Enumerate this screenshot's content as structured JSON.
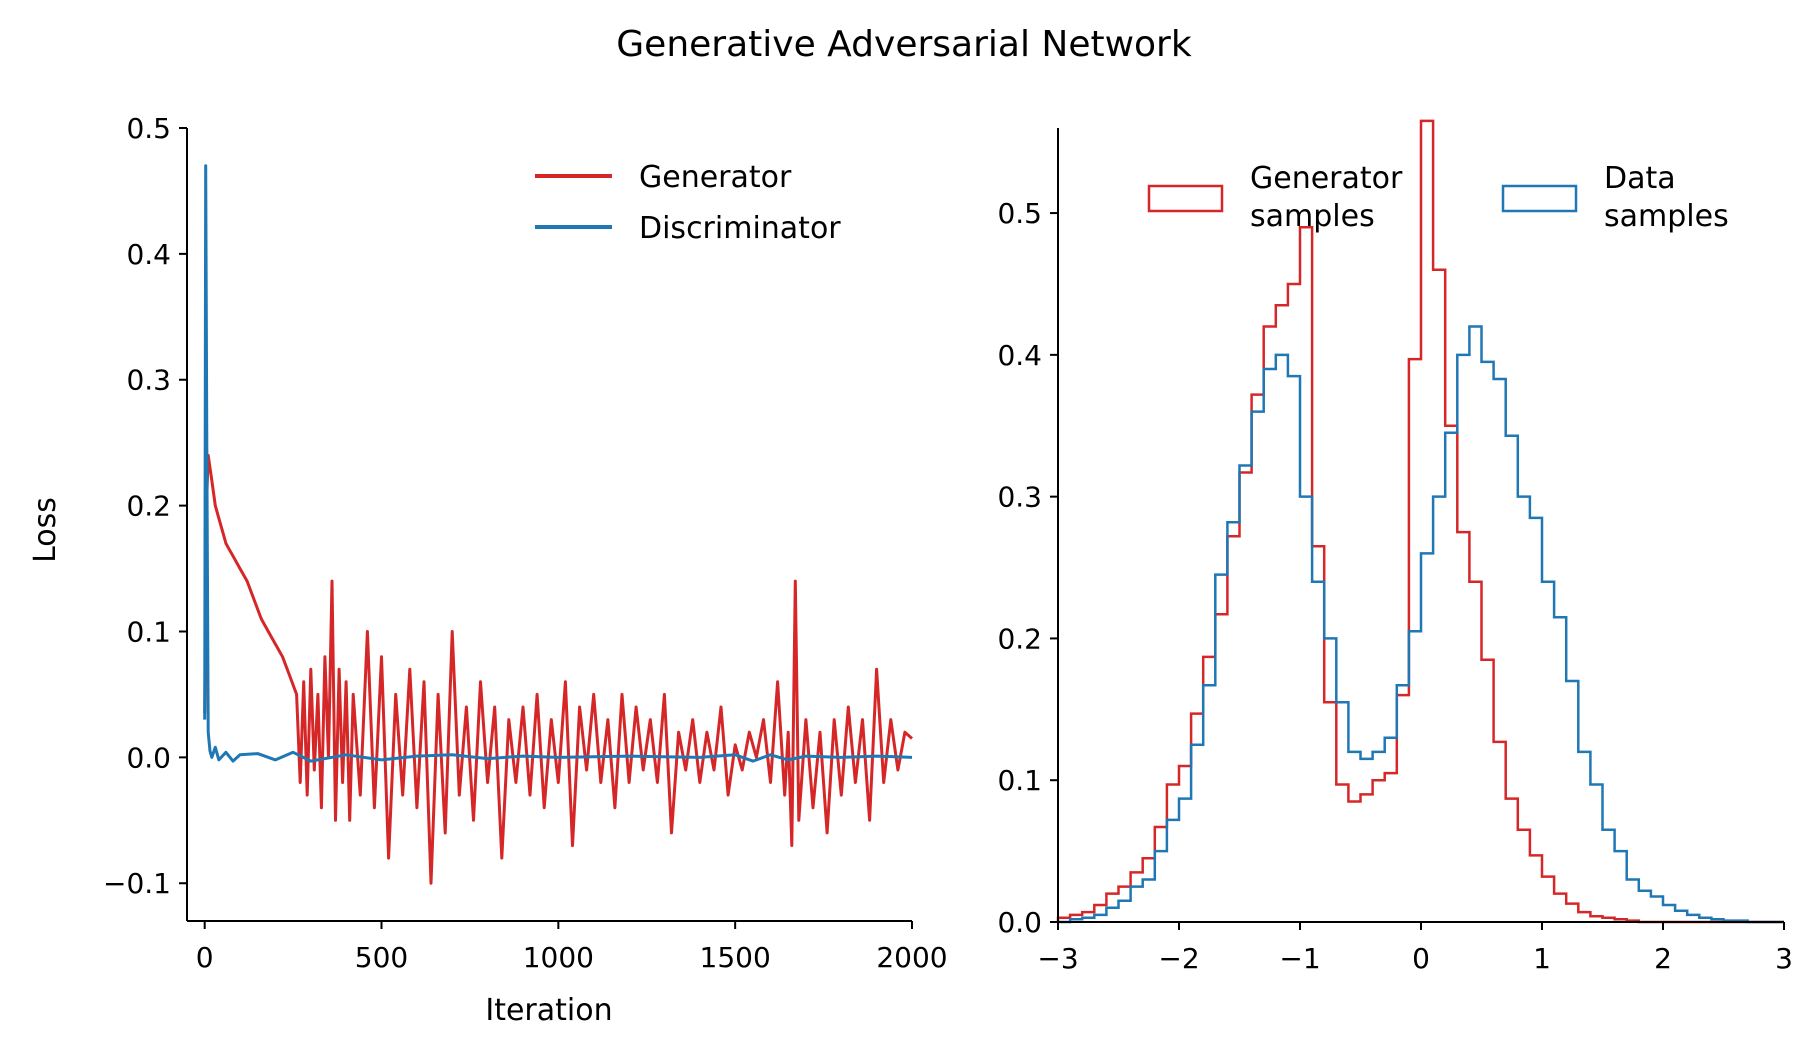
{
  "figure": {
    "title": "Generative Adversarial Network"
  },
  "colors": {
    "generator": "#d62728",
    "discriminator": "#1f77b4",
    "axis": "#000000"
  },
  "chart_data": [
    {
      "type": "line",
      "title": "",
      "xlabel": "Iteration",
      "ylabel": "Loss",
      "xlim": [
        -50,
        2000
      ],
      "ylim": [
        -0.13,
        0.5
      ],
      "xticks": [
        0,
        500,
        1000,
        1500,
        2000
      ],
      "xtick_labels": [
        "0",
        "500",
        "1000",
        "1500",
        "2000"
      ],
      "yticks": [
        -0.1,
        0.0,
        0.1,
        0.2,
        0.3,
        0.4,
        0.5
      ],
      "ytick_labels": [
        "−0.1",
        "0.0",
        "0.1",
        "0.2",
        "0.3",
        "0.4",
        "0.5"
      ],
      "grid": false,
      "legend_position": "top-right",
      "series": [
        {
          "name": "Generator",
          "color": "#d62728",
          "x": [
            0,
            5,
            10,
            20,
            30,
            40,
            50,
            60,
            70,
            80,
            90,
            100,
            120,
            140,
            160,
            180,
            200,
            220,
            240,
            260,
            270,
            280,
            290,
            300,
            310,
            320,
            330,
            340,
            350,
            360,
            370,
            380,
            390,
            400,
            410,
            420,
            440,
            460,
            480,
            500,
            520,
            540,
            560,
            580,
            600,
            620,
            640,
            660,
            680,
            700,
            720,
            740,
            760,
            780,
            800,
            820,
            840,
            860,
            880,
            900,
            920,
            940,
            960,
            980,
            1000,
            1020,
            1040,
            1060,
            1080,
            1100,
            1120,
            1140,
            1160,
            1180,
            1200,
            1220,
            1240,
            1260,
            1280,
            1300,
            1320,
            1340,
            1360,
            1380,
            1400,
            1420,
            1440,
            1460,
            1480,
            1500,
            1520,
            1540,
            1560,
            1580,
            1600,
            1620,
            1640,
            1650,
            1660,
            1670,
            1680,
            1700,
            1720,
            1740,
            1760,
            1780,
            1800,
            1820,
            1840,
            1860,
            1880,
            1900,
            1920,
            1940,
            1960,
            1980,
            2000
          ],
          "values": [
            0.035,
            0.2,
            0.24,
            0.22,
            0.2,
            0.19,
            0.18,
            0.17,
            0.165,
            0.16,
            0.155,
            0.15,
            0.14,
            0.125,
            0.11,
            0.1,
            0.09,
            0.08,
            0.065,
            0.05,
            -0.02,
            0.06,
            -0.03,
            0.07,
            -0.01,
            0.05,
            -0.04,
            0.08,
            0.0,
            0.14,
            -0.05,
            0.07,
            -0.02,
            0.06,
            -0.05,
            0.05,
            -0.03,
            0.1,
            -0.04,
            0.08,
            -0.08,
            0.05,
            -0.03,
            0.07,
            -0.04,
            0.06,
            -0.1,
            0.05,
            -0.06,
            0.1,
            -0.03,
            0.04,
            -0.05,
            0.06,
            -0.02,
            0.04,
            -0.08,
            0.03,
            -0.02,
            0.04,
            -0.03,
            0.05,
            -0.04,
            0.03,
            -0.02,
            0.06,
            -0.07,
            0.04,
            -0.01,
            0.05,
            -0.02,
            0.03,
            -0.04,
            0.05,
            -0.02,
            0.04,
            -0.01,
            0.03,
            -0.02,
            0.05,
            -0.06,
            0.02,
            -0.01,
            0.03,
            -0.02,
            0.02,
            -0.01,
            0.04,
            -0.03,
            0.01,
            -0.01,
            0.02,
            0.0,
            0.03,
            -0.02,
            0.06,
            -0.03,
            0.02,
            -0.07,
            0.14,
            -0.05,
            0.03,
            -0.04,
            0.02,
            -0.06,
            0.03,
            -0.03,
            0.04,
            -0.02,
            0.03,
            -0.05,
            0.07,
            -0.02,
            0.03,
            -0.01,
            0.02,
            0.015
          ]
        },
        {
          "name": "Discriminator",
          "color": "#1f77b4",
          "x": [
            0,
            3,
            6,
            10,
            15,
            20,
            30,
            40,
            60,
            80,
            100,
            150,
            200,
            250,
            300,
            400,
            500,
            600,
            700,
            800,
            900,
            1000,
            1200,
            1400,
            1500,
            1550,
            1600,
            1650,
            1700,
            1800,
            1900,
            2000
          ],
          "values": [
            0.03,
            0.47,
            0.25,
            0.02,
            0.005,
            0.0,
            0.008,
            -0.002,
            0.004,
            -0.003,
            0.002,
            0.003,
            -0.002,
            0.004,
            -0.003,
            0.002,
            -0.002,
            0.001,
            0.002,
            -0.001,
            0.001,
            0.0,
            0.001,
            0.0,
            0.002,
            -0.003,
            0.002,
            -0.002,
            0.001,
            0.0,
            0.001,
            0.0
          ]
        }
      ]
    },
    {
      "type": "histogram",
      "title": "",
      "xlabel": "",
      "ylabel": "",
      "xlim": [
        -3,
        3
      ],
      "ylim": [
        0,
        0.56
      ],
      "xticks": [
        -3,
        -2,
        -1,
        0,
        1,
        2,
        3
      ],
      "xtick_labels": [
        "−3",
        "−2",
        "−1",
        "0",
        "1",
        "2",
        "3"
      ],
      "yticks": [
        0.0,
        0.1,
        0.2,
        0.3,
        0.4,
        0.5
      ],
      "ytick_labels": [
        "0.0",
        "0.1",
        "0.2",
        "0.3",
        "0.4",
        "0.5"
      ],
      "grid": false,
      "legend_position": "top",
      "bin_edges": [
        -3.0,
        -2.9,
        -2.8,
        -2.7,
        -2.6,
        -2.5,
        -2.4,
        -2.3,
        -2.2,
        -2.1,
        -2.0,
        -1.9,
        -1.8,
        -1.7,
        -1.6,
        -1.5,
        -1.4,
        -1.3,
        -1.2,
        -1.1,
        -1.0,
        -0.9,
        -0.8,
        -0.7,
        -0.6,
        -0.5,
        -0.4,
        -0.3,
        -0.2,
        -0.1,
        0.0,
        0.1,
        0.2,
        0.3,
        0.4,
        0.5,
        0.6,
        0.7,
        0.8,
        0.9,
        1.0,
        1.1,
        1.2,
        1.3,
        1.4,
        1.5,
        1.6,
        1.7,
        1.8,
        1.9,
        2.0,
        2.1,
        2.2,
        2.3,
        2.4,
        2.5,
        2.6,
        2.7,
        2.8,
        2.9,
        3.0
      ],
      "series": [
        {
          "name": "Generator\nsamples",
          "name_lines": [
            "Generator",
            "samples"
          ],
          "color": "#d62728",
          "values": [
            0.003,
            0.005,
            0.007,
            0.012,
            0.02,
            0.025,
            0.035,
            0.045,
            0.067,
            0.097,
            0.11,
            0.147,
            0.187,
            0.217,
            0.272,
            0.317,
            0.372,
            0.42,
            0.435,
            0.45,
            0.49,
            0.265,
            0.155,
            0.097,
            0.085,
            0.09,
            0.1,
            0.105,
            0.16,
            0.397,
            0.565,
            0.46,
            0.35,
            0.275,
            0.24,
            0.185,
            0.127,
            0.087,
            0.065,
            0.047,
            0.032,
            0.02,
            0.013,
            0.007,
            0.004,
            0.003,
            0.002,
            0.001,
            0.0,
            0.0,
            0.0,
            0.0,
            0.0,
            0.0,
            0.0,
            0.0,
            0.0,
            0.0,
            0.0,
            0.0
          ]
        },
        {
          "name": "Data\nsamples",
          "name_lines": [
            "Data",
            "samples"
          ],
          "color": "#1f77b4",
          "values": [
            0.0,
            0.002,
            0.003,
            0.005,
            0.01,
            0.015,
            0.025,
            0.03,
            0.05,
            0.072,
            0.087,
            0.125,
            0.167,
            0.245,
            0.282,
            0.322,
            0.36,
            0.39,
            0.4,
            0.385,
            0.3,
            0.24,
            0.2,
            0.155,
            0.12,
            0.115,
            0.12,
            0.13,
            0.167,
            0.205,
            0.26,
            0.3,
            0.345,
            0.4,
            0.42,
            0.395,
            0.383,
            0.343,
            0.3,
            0.285,
            0.24,
            0.215,
            0.17,
            0.12,
            0.097,
            0.065,
            0.05,
            0.03,
            0.022,
            0.018,
            0.012,
            0.008,
            0.005,
            0.003,
            0.002,
            0.001,
            0.001,
            0.0,
            0.0,
            0.0
          ]
        }
      ]
    }
  ]
}
